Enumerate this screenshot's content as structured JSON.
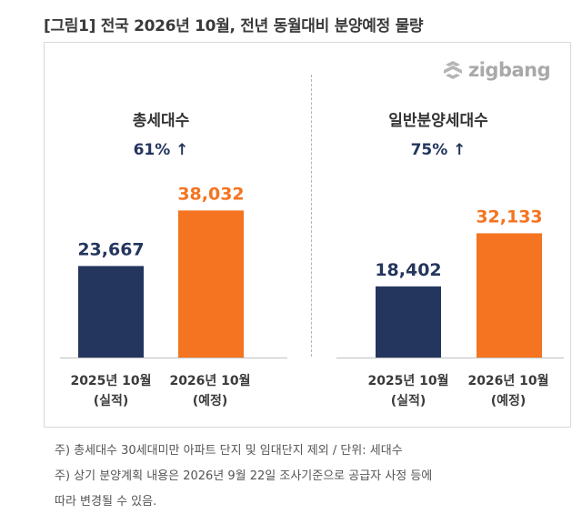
{
  "figure_title": "[그림1] 전국 2026년 10월, 전년 동월대비 분양예정 물량",
  "logo_text": "zigbang",
  "colors": {
    "actual": "#24365e",
    "planned": "#f47421",
    "text": "#333333"
  },
  "chart_data": [
    {
      "type": "bar",
      "title": "총세대수",
      "growth_label": "61% ↑",
      "categories": [
        "2025년 10월\n(실적)",
        "2026년 10월\n(예정)"
      ],
      "values": [
        23667,
        38032
      ],
      "value_labels": [
        "23,667",
        "38,032"
      ],
      "ylim": [
        0,
        40000
      ]
    },
    {
      "type": "bar",
      "title": "일반분양세대수",
      "growth_label": "75% ↑",
      "categories": [
        "2025년 10월\n(실적)",
        "2026년 10월\n(예정)"
      ],
      "values": [
        18402,
        32133
      ],
      "value_labels": [
        "18,402",
        "32,133"
      ],
      "ylim": [
        0,
        40000
      ]
    }
  ],
  "x_labels": {
    "left_1_line1": "2025년 10월",
    "left_1_line2": "(실적)",
    "left_2_line1": "2026년 10월",
    "left_2_line2": "(예정)",
    "right_1_line1": "2025년 10월",
    "right_1_line2": "(실적)",
    "right_2_line1": "2026년 10월",
    "right_2_line2": "(예정)"
  },
  "footnotes": [
    "주) 총세대수 30세대미만 아파트  단지 및 임대단지 제외 / 단위: 세대수",
    "주) 상기 분양계획 내용은 2026년 9월 22일 조사기준으로 공급자 사정 등에",
    "따라 변경될 수 있음."
  ]
}
